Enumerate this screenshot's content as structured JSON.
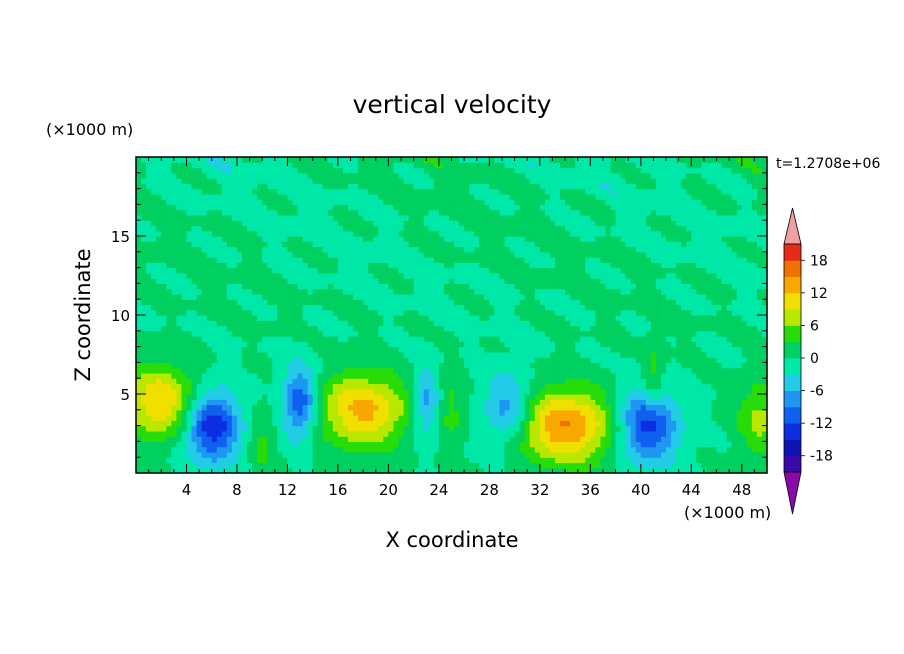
{
  "chart_data": {
    "type": "heatmap",
    "title": "vertical velocity",
    "xlabel": "X coordinate",
    "ylabel": "Z coordinate",
    "x_unit": "(×1000 m)",
    "y_unit": "(×1000 m)",
    "time_label": "t=1.2708e+06",
    "xlim": [
      0,
      50
    ],
    "ylim": [
      0,
      20
    ],
    "x_ticks": [
      "4",
      "8",
      "12",
      "16",
      "20",
      "24",
      "28",
      "32",
      "36",
      "40",
      "44",
      "48"
    ],
    "y_ticks": [
      "5",
      "10",
      "15"
    ],
    "grid": false,
    "colorbar": {
      "labels": [
        "18",
        "12",
        "6",
        "0",
        "-6",
        "-12",
        "-18"
      ],
      "levels": [
        -21,
        -18,
        -15,
        -12,
        -9,
        -6,
        -3,
        0,
        3,
        6,
        9,
        12,
        15,
        18,
        21
      ],
      "colors": [
        "#3a0aa8",
        "#1212b4",
        "#0c2ee0",
        "#1060f0",
        "#1e96f2",
        "#22cce6",
        "#00e8a8",
        "#00d060",
        "#28dc0a",
        "#b8e800",
        "#f0e000",
        "#f8a800",
        "#f07000",
        "#e82a18"
      ],
      "over_color": "#f0a0a0",
      "under_color": "#8a0aa8"
    },
    "features": [
      {
        "x": 2,
        "z": 4.5,
        "w": 3.0,
        "peak": 12
      },
      {
        "x": 6,
        "z": 3.0,
        "w": 2.2,
        "peak": -15
      },
      {
        "x": 10,
        "z": 2.0,
        "w": 1.0,
        "peak": 4
      },
      {
        "x": 13,
        "z": 4.5,
        "w": 1.4,
        "peak": -12
      },
      {
        "x": 18,
        "z": 4.0,
        "w": 3.5,
        "peak": 13
      },
      {
        "x": 23,
        "z": 4.5,
        "w": 1.0,
        "peak": -8
      },
      {
        "x": 25,
        "z": 4.0,
        "w": 1.0,
        "peak": 4
      },
      {
        "x": 29.5,
        "z": 4.0,
        "w": 2.0,
        "peak": -9
      },
      {
        "x": 34,
        "z": 3.0,
        "w": 4.0,
        "peak": 15
      },
      {
        "x": 40.5,
        "z": 3.0,
        "w": 2.4,
        "peak": -14
      },
      {
        "x": 41,
        "z": 6.0,
        "w": 0.8,
        "peak": 5
      },
      {
        "x": 49.5,
        "z": 3.5,
        "w": 1.8,
        "peak": 7
      }
    ]
  }
}
